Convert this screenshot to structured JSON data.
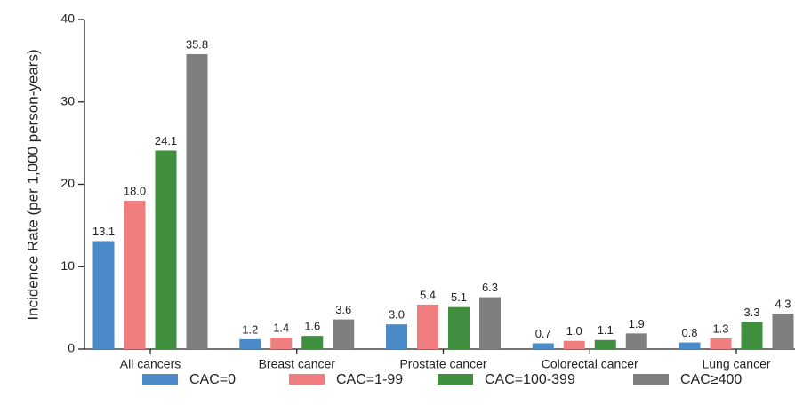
{
  "chart_data": {
    "type": "bar",
    "y_label": "Incidence Rate (per 1,000 person-years)",
    "categories": [
      "All cancers",
      "Breast cancer",
      "Prostate cancer",
      "Colorectal cancer",
      "Lung cancer"
    ],
    "series": [
      {
        "name": "CAC=0",
        "color": "#4a8ac9",
        "values": [
          13.1,
          1.2,
          3.0,
          0.7,
          0.8
        ],
        "value_labels": [
          "13.1",
          "1.2",
          "3.0",
          "0.7",
          "0.8"
        ]
      },
      {
        "name": "CAC=1-99",
        "color": "#f07e7e",
        "values": [
          18.0,
          1.4,
          5.4,
          1.0,
          1.3
        ],
        "value_labels": [
          "18.0",
          "1.4",
          "5.4",
          "1.0",
          "1.3"
        ]
      },
      {
        "name": "CAC=100-399",
        "color": "#3f8f3f",
        "values": [
          24.1,
          1.6,
          5.1,
          1.1,
          3.3
        ],
        "value_labels": [
          "24.1",
          "1.6",
          "5.1",
          "1.1",
          "3.3"
        ]
      },
      {
        "name": "CAC≥400",
        "color": "#7f7f7f",
        "values": [
          35.8,
          3.6,
          6.3,
          1.9,
          4.3
        ],
        "value_labels": [
          "35.8",
          "3.6",
          "6.3",
          "1.9",
          "4.3"
        ]
      }
    ],
    "ylim": [
      0,
      40
    ],
    "yticks": [
      0,
      10,
      20,
      30,
      40
    ],
    "legend": "bottom"
  }
}
